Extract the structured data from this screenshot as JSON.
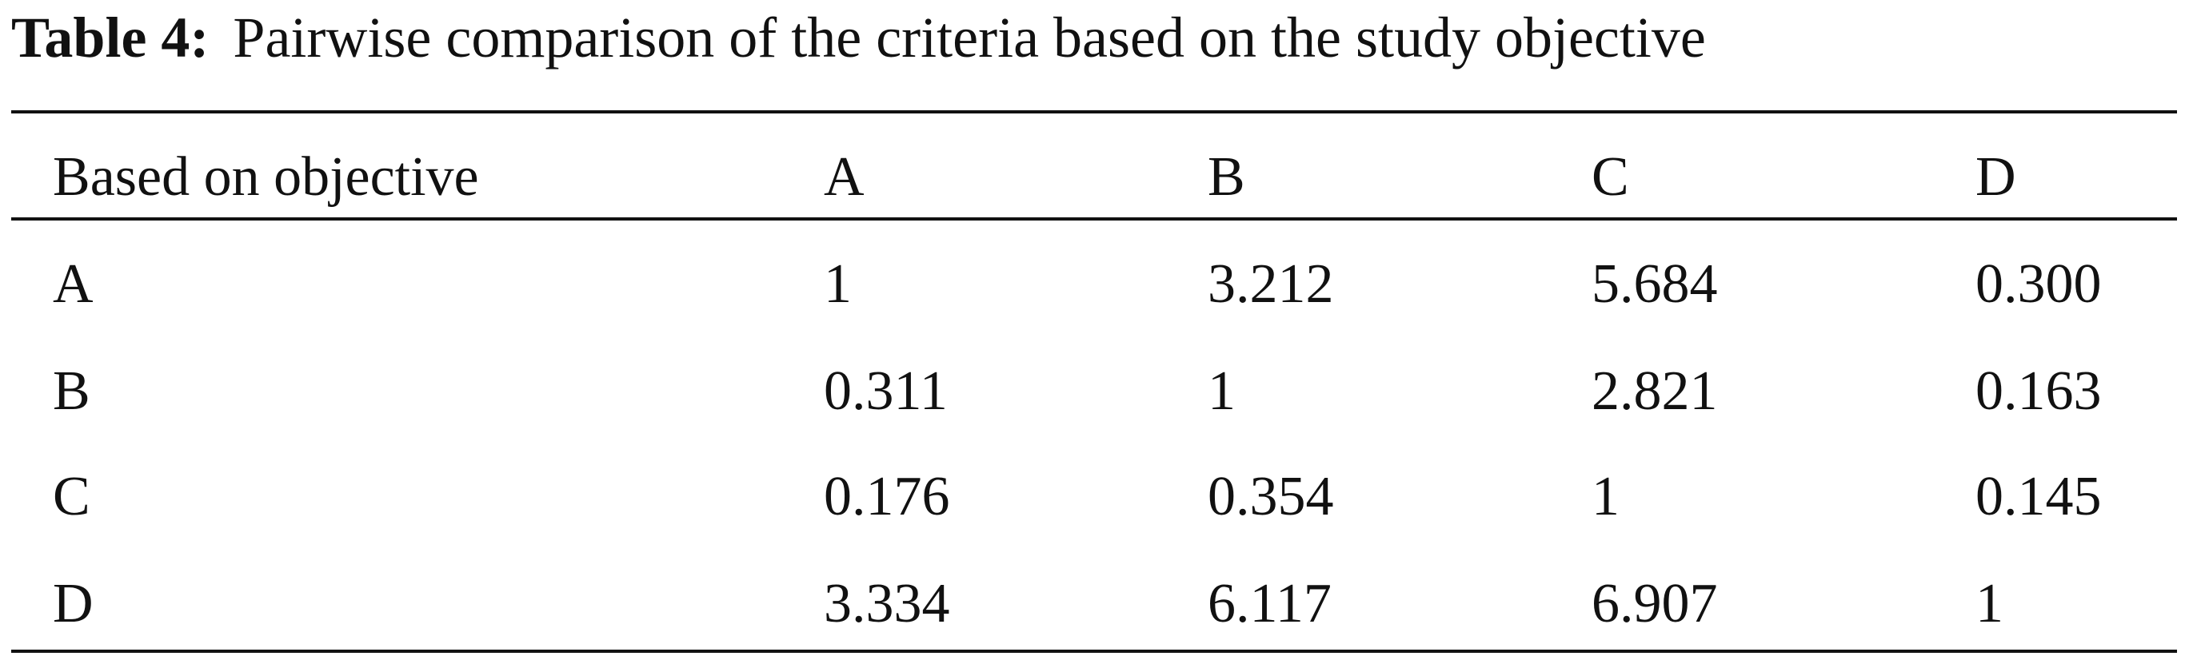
{
  "caption": {
    "label": "Table 4:",
    "text": "Pairwise comparison of the criteria based on the study objective"
  },
  "table": {
    "header": [
      "Based on objective",
      "A",
      "B",
      "C",
      "D"
    ],
    "rows": [
      [
        "A",
        "1",
        "3.212",
        "5.684",
        "0.300"
      ],
      [
        "B",
        "0.311",
        "1",
        "2.821",
        "0.163"
      ],
      [
        "C",
        "0.176",
        "0.354",
        "1",
        "0.145"
      ],
      [
        "D",
        "3.334",
        "6.117",
        "6.907",
        "1"
      ]
    ]
  }
}
